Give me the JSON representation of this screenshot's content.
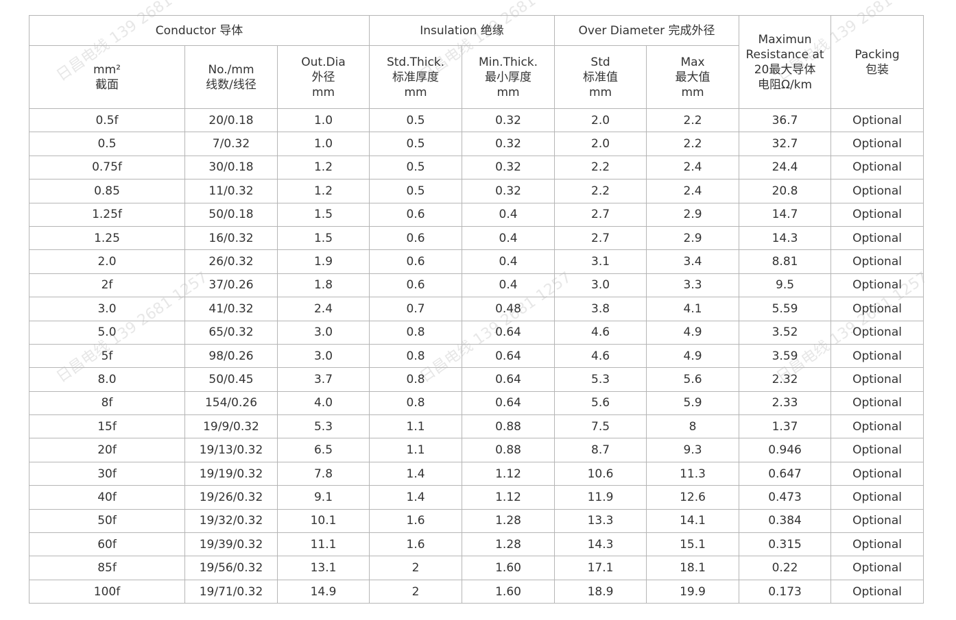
{
  "watermark": "日昌电线 139 2681 1257",
  "header": {
    "groups": [
      "Conductor 导体",
      "Insulation 绝缘",
      "Over Diameter 完成外径"
    ],
    "resistance": [
      "Maximun",
      "Resistance at",
      "20最大导体",
      "电阻Ω/km"
    ],
    "packing": [
      "Packing",
      "包装"
    ],
    "cols": [
      [
        "mm²",
        "截面"
      ],
      [
        "No./mm",
        "线数/线径"
      ],
      [
        "Out.Dia",
        "外径",
        "mm"
      ],
      [
        "Std.Thick.",
        "标准厚度",
        "mm"
      ],
      [
        "Min.Thick.",
        "最小厚度",
        "mm"
      ],
      [
        "Std",
        "标准值",
        "mm"
      ],
      [
        "Max",
        "最大值",
        "mm"
      ]
    ]
  },
  "rows": [
    [
      "0.5f",
      "20/0.18",
      "1.0",
      "0.5",
      "0.32",
      "2.0",
      "2.2",
      "36.7",
      "Optional"
    ],
    [
      "0.5",
      "7/0.32",
      "1.0",
      "0.5",
      "0.32",
      "2.0",
      "2.2",
      "32.7",
      "Optional"
    ],
    [
      "0.75f",
      "30/0.18",
      "1.2",
      "0.5",
      "0.32",
      "2.2",
      "2.4",
      "24.4",
      "Optional"
    ],
    [
      "0.85",
      "11/0.32",
      "1.2",
      "0.5",
      "0.32",
      "2.2",
      "2.4",
      "20.8",
      "Optional"
    ],
    [
      "1.25f",
      "50/0.18",
      "1.5",
      "0.6",
      "0.4",
      "2.7",
      "2.9",
      "14.7",
      "Optional"
    ],
    [
      "1.25",
      "16/0.32",
      "1.5",
      "0.6",
      "0.4",
      "2.7",
      "2.9",
      "14.3",
      "Optional"
    ],
    [
      "2.0",
      "26/0.32",
      "1.9",
      "0.6",
      "0.4",
      "3.1",
      "3.4",
      "8.81",
      "Optional"
    ],
    [
      "2f",
      "37/0.26",
      "1.8",
      "0.6",
      "0.4",
      "3.0",
      "3.3",
      "9.5",
      "Optional"
    ],
    [
      "3.0",
      "41/0.32",
      "2.4",
      "0.7",
      "0.48",
      "3.8",
      "4.1",
      "5.59",
      "Optional"
    ],
    [
      "5.0",
      "65/0.32",
      "3.0",
      "0.8",
      "0.64",
      "4.6",
      "4.9",
      "3.52",
      "Optional"
    ],
    [
      "5f",
      "98/0.26",
      "3.0",
      "0.8",
      "0.64",
      "4.6",
      "4.9",
      "3.59",
      "Optional"
    ],
    [
      "8.0",
      "50/0.45",
      "3.7",
      "0.8",
      "0.64",
      "5.3",
      "5.6",
      "2.32",
      "Optional"
    ],
    [
      "8f",
      "154/0.26",
      "4.0",
      "0.8",
      "0.64",
      "5.6",
      "5.9",
      "2.33",
      "Optional"
    ],
    [
      "15f",
      "19/9/0.32",
      "5.3",
      "1.1",
      "0.88",
      "7.5",
      "8",
      "1.37",
      "Optional"
    ],
    [
      "20f",
      "19/13/0.32",
      "6.5",
      "1.1",
      "0.88",
      "8.7",
      "9.3",
      "0.946",
      "Optional"
    ],
    [
      "30f",
      "19/19/0.32",
      "7.8",
      "1.4",
      "1.12",
      "10.6",
      "11.3",
      "0.647",
      "Optional"
    ],
    [
      "40f",
      "19/26/0.32",
      "9.1",
      "1.4",
      "1.12",
      "11.9",
      "12.6",
      "0.473",
      "Optional"
    ],
    [
      "50f",
      "19/32/0.32",
      "10.1",
      "1.6",
      "1.28",
      "13.3",
      "14.1",
      "0.384",
      "Optional"
    ],
    [
      "60f",
      "19/39/0.32",
      "11.1",
      "1.6",
      "1.28",
      "14.3",
      "15.1",
      "0.315",
      "Optional"
    ],
    [
      "85f",
      "19/56/0.32",
      "13.1",
      "2",
      "1.60",
      "17.1",
      "18.1",
      "0.22",
      "Optional"
    ],
    [
      "100f",
      "19/71/0.32",
      "14.9",
      "2",
      "1.60",
      "18.9",
      "19.9",
      "0.173",
      "Optional"
    ]
  ]
}
